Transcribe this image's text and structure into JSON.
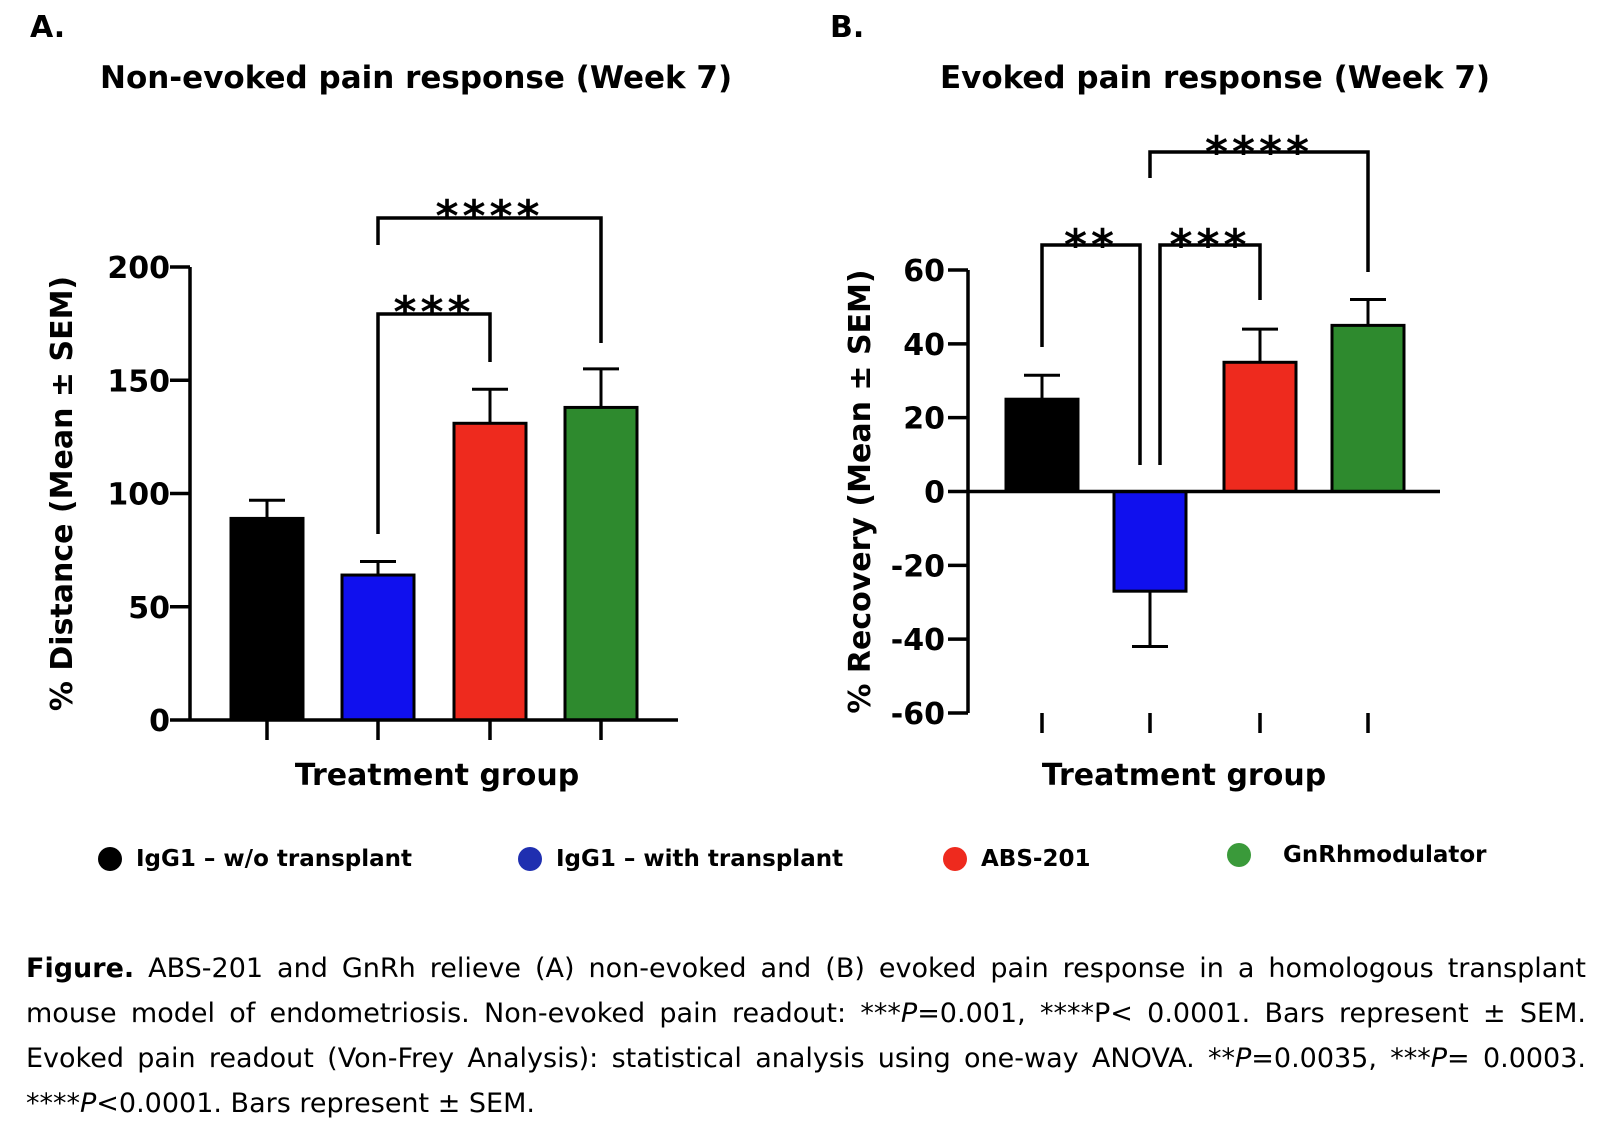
{
  "panels": {
    "a_letter": "A.",
    "b_letter": "B."
  },
  "chart_data": [
    {
      "type": "bar",
      "title": "Non-evoked pain response (Week 7)",
      "xlabel": "Treatment group",
      "ylabel": "% Distance (Mean ± SEM)",
      "ylim": [
        0,
        200
      ],
      "yticks": [
        0,
        50,
        100,
        150,
        200
      ],
      "categories": [
        "IgG1 – w/o transplant",
        "IgG1 – with transplant",
        "ABS-201",
        "GnRhmodulator"
      ],
      "values": [
        89,
        64,
        131,
        138
      ],
      "errors": [
        8,
        6,
        15,
        17
      ],
      "colors": [
        "#000000",
        "#1010ee",
        "#ee2a1e",
        "#2e8a2e"
      ],
      "significance": [
        {
          "from": 1,
          "to": 2,
          "label": "***"
        },
        {
          "from": 1,
          "to": 3,
          "label": "****"
        }
      ],
      "grid": false
    },
    {
      "type": "bar",
      "title": "Evoked pain response (Week 7)",
      "xlabel": "Treatment group",
      "ylabel": "% Recovery (Mean ± SEM)",
      "ylim": [
        -60,
        60
      ],
      "yticks": [
        -60,
        -40,
        -20,
        0,
        20,
        40,
        60
      ],
      "categories": [
        "IgG1 – w/o transplant",
        "IgG1 – with transplant",
        "ABS-201",
        "GnRhmodulator"
      ],
      "values": [
        25,
        -27,
        35,
        45
      ],
      "errors": [
        6.5,
        15,
        9,
        7
      ],
      "colors": [
        "#000000",
        "#1010ee",
        "#ee2a1e",
        "#2e8a2e"
      ],
      "significance": [
        {
          "from": 0,
          "to": 1,
          "label": "**"
        },
        {
          "from": 1,
          "to": 2,
          "label": "***"
        },
        {
          "from": 1,
          "to": 3,
          "label": "****"
        }
      ],
      "grid": false
    }
  ],
  "legend": {
    "items": [
      {
        "label": "IgG1 – w/o transplant",
        "color": "#000000"
      },
      {
        "label": "IgG1 – with transplant",
        "color": "#1f2fb0"
      },
      {
        "label": "ABS-201",
        "color": "#ee2a1e"
      },
      {
        "label": "GnRhmodulator",
        "color": "#3a9a3a"
      }
    ]
  },
  "caption": {
    "lead": "Figure.",
    "s1": " ABS-201 and GnRh relieve (A) non-evoked and (B) evoked pain response in a homologous transplant mouse model of endometriosis. Non-evoked pain readout:  ***",
    "p1": "P",
    "s2": "=0.001, ****P< 0.0001. Bars represent ± SEM. Evoked pain readout (Von-Frey Analysis): statistical analysis using one-way ANOVA. **",
    "p2": "P",
    "s3": "=0.0035, ***",
    "p3": "P",
    "s4": "= 0.0003. ****",
    "p4": "P",
    "s5": "<0.0001. Bars represent ± SEM."
  }
}
